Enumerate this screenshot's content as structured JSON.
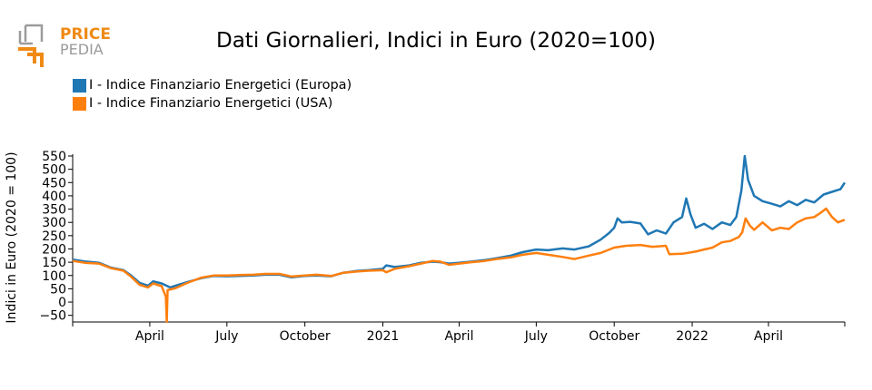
{
  "logo": {
    "text_top": "PRICE",
    "text_bottom": "PEDIA",
    "accent": "#ef8a14",
    "gray": "#9b9b9b"
  },
  "chart_data": {
    "type": "line",
    "title": "Dati Giornalieri, Indici in Euro (2020=100)",
    "ylabel": "Indici in Euro (2020 = 100)",
    "xlabel": "",
    "ylim": [
      -75,
      550
    ],
    "yticks": [
      -50,
      0,
      50,
      100,
      150,
      200,
      250,
      300,
      350,
      400,
      450,
      500,
      550
    ],
    "ytick_labels": [
      "−50",
      "0",
      "50",
      "100",
      "150",
      "200",
      "250",
      "300",
      "350",
      "400",
      "450",
      "500",
      "550"
    ],
    "xlim": [
      "2020-01-01",
      "2022-06-30"
    ],
    "xticks": [
      {
        "date": "2020-04-01",
        "label": "April"
      },
      {
        "date": "2020-07-01",
        "label": "July"
      },
      {
        "date": "2020-10-01",
        "label": "October"
      },
      {
        "date": "2021-01-01",
        "label": "2021"
      },
      {
        "date": "2021-04-01",
        "label": "April"
      },
      {
        "date": "2021-07-01",
        "label": "July"
      },
      {
        "date": "2021-10-01",
        "label": "October"
      },
      {
        "date": "2022-01-01",
        "label": "2022"
      },
      {
        "date": "2022-04-01",
        "label": "April"
      }
    ],
    "legend_position": "top-left",
    "series": [
      {
        "name": "I - Indice Finanziario Energetici (Europa)",
        "color": "#1f77b4",
        "points": [
          [
            "2020-01-01",
            160
          ],
          [
            "2020-01-15",
            153
          ],
          [
            "2020-02-01",
            148
          ],
          [
            "2020-02-15",
            130
          ],
          [
            "2020-03-01",
            120
          ],
          [
            "2020-03-10",
            100
          ],
          [
            "2020-03-20",
            72
          ],
          [
            "2020-03-30",
            62
          ],
          [
            "2020-04-05",
            78
          ],
          [
            "2020-04-15",
            70
          ],
          [
            "2020-04-25",
            55
          ],
          [
            "2020-05-05",
            65
          ],
          [
            "2020-05-15",
            75
          ],
          [
            "2020-06-01",
            90
          ],
          [
            "2020-06-15",
            98
          ],
          [
            "2020-07-01",
            97
          ],
          [
            "2020-07-15",
            98
          ],
          [
            "2020-08-01",
            100
          ],
          [
            "2020-08-15",
            103
          ],
          [
            "2020-09-01",
            103
          ],
          [
            "2020-09-15",
            93
          ],
          [
            "2020-10-01",
            98
          ],
          [
            "2020-10-15",
            100
          ],
          [
            "2020-11-01",
            97
          ],
          [
            "2020-11-15",
            110
          ],
          [
            "2020-12-01",
            117
          ],
          [
            "2020-12-15",
            120
          ],
          [
            "2021-01-01",
            125
          ],
          [
            "2021-01-05",
            138
          ],
          [
            "2021-01-15",
            132
          ],
          [
            "2021-02-01",
            138
          ],
          [
            "2021-02-15",
            148
          ],
          [
            "2021-03-01",
            152
          ],
          [
            "2021-03-10",
            150
          ],
          [
            "2021-03-20",
            145
          ],
          [
            "2021-04-01",
            148
          ],
          [
            "2021-04-15",
            152
          ],
          [
            "2021-05-01",
            158
          ],
          [
            "2021-05-15",
            165
          ],
          [
            "2021-06-01",
            175
          ],
          [
            "2021-06-15",
            188
          ],
          [
            "2021-07-01",
            198
          ],
          [
            "2021-07-15",
            195
          ],
          [
            "2021-08-01",
            202
          ],
          [
            "2021-08-15",
            198
          ],
          [
            "2021-09-01",
            210
          ],
          [
            "2021-09-15",
            235
          ],
          [
            "2021-09-25",
            260
          ],
          [
            "2021-10-01",
            280
          ],
          [
            "2021-10-05",
            315
          ],
          [
            "2021-10-10",
            300
          ],
          [
            "2021-10-20",
            302
          ],
          [
            "2021-11-01",
            296
          ],
          [
            "2021-11-10",
            255
          ],
          [
            "2021-11-20",
            270
          ],
          [
            "2021-12-01",
            258
          ],
          [
            "2021-12-10",
            300
          ],
          [
            "2021-12-20",
            320
          ],
          [
            "2021-12-25",
            390
          ],
          [
            "2021-12-30",
            330
          ],
          [
            "2022-01-05",
            280
          ],
          [
            "2022-01-15",
            295
          ],
          [
            "2022-01-25",
            275
          ],
          [
            "2022-02-05",
            300
          ],
          [
            "2022-02-15",
            290
          ],
          [
            "2022-02-22",
            320
          ],
          [
            "2022-02-28",
            420
          ],
          [
            "2022-03-04",
            550
          ],
          [
            "2022-03-08",
            460
          ],
          [
            "2022-03-15",
            400
          ],
          [
            "2022-03-25",
            380
          ],
          [
            "2022-04-05",
            370
          ],
          [
            "2022-04-15",
            360
          ],
          [
            "2022-04-25",
            380
          ],
          [
            "2022-05-05",
            365
          ],
          [
            "2022-05-15",
            385
          ],
          [
            "2022-05-25",
            375
          ],
          [
            "2022-06-05",
            405
          ],
          [
            "2022-06-15",
            415
          ],
          [
            "2022-06-25",
            425
          ],
          [
            "2022-06-30",
            450
          ]
        ]
      },
      {
        "name": "I - Indice Finanziario Energetici (USA)",
        "color": "#ff7f0e",
        "points": [
          [
            "2020-01-01",
            155
          ],
          [
            "2020-01-15",
            148
          ],
          [
            "2020-02-01",
            145
          ],
          [
            "2020-02-15",
            128
          ],
          [
            "2020-03-01",
            118
          ],
          [
            "2020-03-10",
            95
          ],
          [
            "2020-03-20",
            65
          ],
          [
            "2020-03-30",
            55
          ],
          [
            "2020-04-05",
            70
          ],
          [
            "2020-04-15",
            60
          ],
          [
            "2020-04-20",
            20
          ],
          [
            "2020-04-21",
            -75
          ],
          [
            "2020-04-22",
            45
          ],
          [
            "2020-05-01",
            52
          ],
          [
            "2020-05-15",
            72
          ],
          [
            "2020-06-01",
            92
          ],
          [
            "2020-06-15",
            100
          ],
          [
            "2020-07-01",
            100
          ],
          [
            "2020-07-15",
            102
          ],
          [
            "2020-08-01",
            103
          ],
          [
            "2020-08-15",
            106
          ],
          [
            "2020-09-01",
            106
          ],
          [
            "2020-09-15",
            96
          ],
          [
            "2020-10-01",
            100
          ],
          [
            "2020-10-15",
            103
          ],
          [
            "2020-11-01",
            98
          ],
          [
            "2020-11-15",
            110
          ],
          [
            "2020-12-01",
            115
          ],
          [
            "2020-12-15",
            118
          ],
          [
            "2021-01-01",
            120
          ],
          [
            "2021-01-05",
            112
          ],
          [
            "2021-01-15",
            125
          ],
          [
            "2021-02-01",
            135
          ],
          [
            "2021-02-15",
            145
          ],
          [
            "2021-03-01",
            155
          ],
          [
            "2021-03-10",
            152
          ],
          [
            "2021-03-20",
            140
          ],
          [
            "2021-04-01",
            145
          ],
          [
            "2021-04-15",
            150
          ],
          [
            "2021-05-01",
            155
          ],
          [
            "2021-05-15",
            162
          ],
          [
            "2021-06-01",
            168
          ],
          [
            "2021-06-15",
            178
          ],
          [
            "2021-07-01",
            185
          ],
          [
            "2021-07-15",
            178
          ],
          [
            "2021-08-01",
            170
          ],
          [
            "2021-08-15",
            162
          ],
          [
            "2021-09-01",
            175
          ],
          [
            "2021-09-15",
            185
          ],
          [
            "2021-10-01",
            205
          ],
          [
            "2021-10-15",
            212
          ],
          [
            "2021-11-01",
            215
          ],
          [
            "2021-11-15",
            208
          ],
          [
            "2021-12-01",
            212
          ],
          [
            "2021-12-05",
            180
          ],
          [
            "2021-12-20",
            182
          ],
          [
            "2022-01-05",
            190
          ],
          [
            "2022-01-15",
            198
          ],
          [
            "2022-01-25",
            205
          ],
          [
            "2022-02-05",
            225
          ],
          [
            "2022-02-15",
            230
          ],
          [
            "2022-02-25",
            245
          ],
          [
            "2022-03-01",
            262
          ],
          [
            "2022-03-05",
            315
          ],
          [
            "2022-03-10",
            288
          ],
          [
            "2022-03-15",
            272
          ],
          [
            "2022-03-25",
            300
          ],
          [
            "2022-04-05",
            270
          ],
          [
            "2022-04-15",
            280
          ],
          [
            "2022-04-25",
            275
          ],
          [
            "2022-05-05",
            300
          ],
          [
            "2022-05-15",
            315
          ],
          [
            "2022-05-25",
            320
          ],
          [
            "2022-06-01",
            335
          ],
          [
            "2022-06-08",
            352
          ],
          [
            "2022-06-15",
            320
          ],
          [
            "2022-06-22",
            300
          ],
          [
            "2022-06-30",
            310
          ]
        ]
      }
    ]
  }
}
